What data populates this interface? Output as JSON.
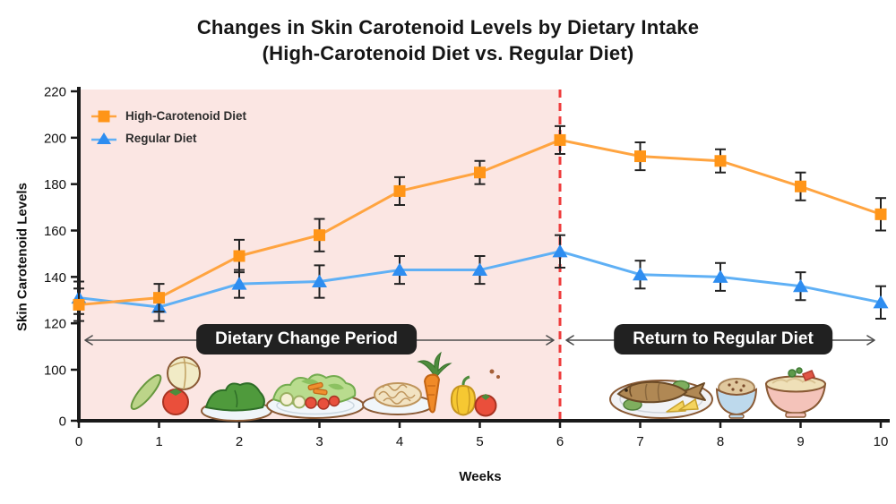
{
  "title": {
    "line1": "Changes in Skin Carotenoid Levels by Dietary Intake",
    "line2": "(High-Carotenoid Diet vs. Regular Diet)"
  },
  "colors": {
    "high_carotenoid_marker": "#FF9518",
    "high_carotenoid_line": "#FFA440",
    "regular_marker": "#2E8DF0",
    "regular_line": "#5FB0F5",
    "shaded_region": "#FBE6E3",
    "dashed_line": "#EF3B3B",
    "annotation_box_bg": "#212121",
    "annotation_text": "#FFFFFF",
    "axis": "#1A1A1A",
    "error_bar": "#222222",
    "arrow": "#4D4D4D"
  },
  "chart_data": {
    "type": "line",
    "title": "Changes in Skin Carotenoid Levels by Dietary Intake (High-Carotenoid Diet vs. Regular Diet)",
    "xlabel": "Weeks",
    "ylabel": "Skin Carotenoid Levels",
    "x": [
      0,
      1,
      2,
      3,
      4,
      5,
      6,
      7,
      8,
      9,
      10
    ],
    "xlim": [
      0,
      10
    ],
    "yticks": [
      0,
      100,
      120,
      140,
      160,
      180,
      200,
      220
    ],
    "ylim": [
      0,
      220
    ],
    "axis_note": "broken y-axis: 0 shown at origin, scale runs 100-220",
    "grid": false,
    "legend_position": "upper-left",
    "series": [
      {
        "name": "High-Carotenoid Diet",
        "marker": "square",
        "color": "#FF9518",
        "values": [
          128,
          131,
          149,
          158,
          177,
          185,
          199,
          192,
          190,
          179,
          167
        ],
        "errors": [
          7,
          6,
          7,
          7,
          6,
          5,
          6,
          6,
          5,
          6,
          7
        ]
      },
      {
        "name": "Regular Diet",
        "marker": "triangle",
        "color": "#2E8DF0",
        "values": [
          131,
          127,
          137,
          138,
          143,
          143,
          151,
          141,
          140,
          136,
          129
        ],
        "errors": [
          7,
          6,
          6,
          7,
          6,
          6,
          7,
          6,
          6,
          6,
          7
        ]
      }
    ],
    "annotations": [
      {
        "label": "Dietary Change Period",
        "x_start": 0,
        "x_end": 6
      },
      {
        "label": "Return to Regular Diet",
        "x_start": 6,
        "x_end": 10
      }
    ],
    "vline": {
      "x": 6,
      "style": "dashed",
      "color": "#EF3B3B"
    },
    "shaded_region": {
      "x_start": 0,
      "x_end": 6,
      "color": "#FBE6E3"
    }
  },
  "icons": {
    "foods_left": [
      "cucumber",
      "cabbage",
      "tomato",
      "leafy-greens-plate",
      "salad-plate",
      "pasta-plate",
      "carrot",
      "bell-pepper",
      "cherry-tomato"
    ],
    "foods_right": [
      "grilled-fish-plate",
      "rice-bowl",
      "noodle-bowl"
    ]
  }
}
